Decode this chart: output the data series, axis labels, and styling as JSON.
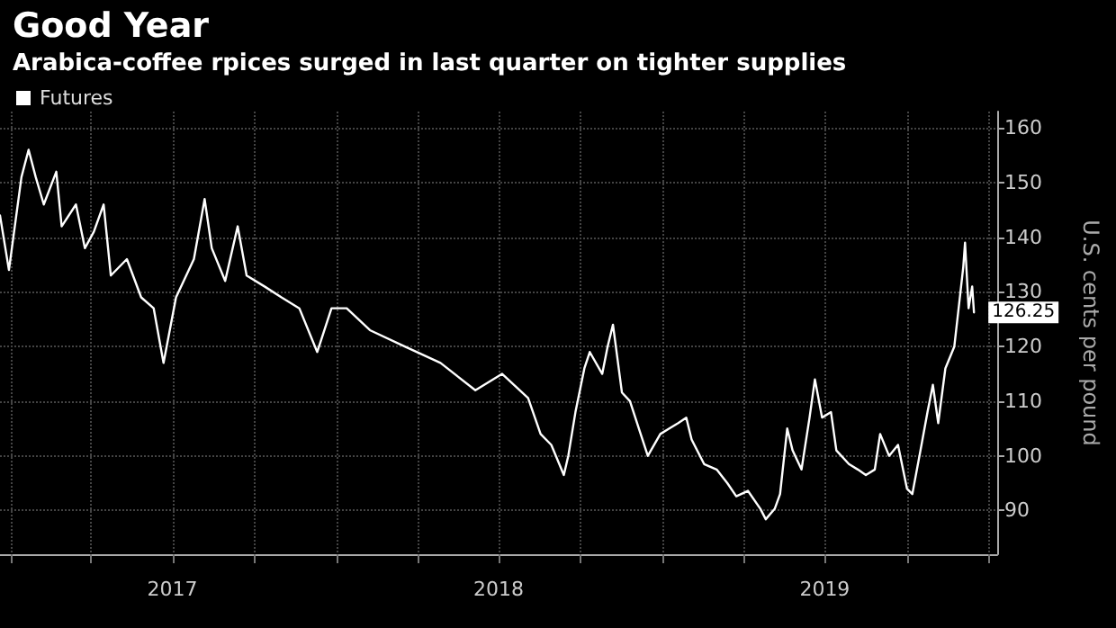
{
  "chart_data": {
    "type": "line",
    "title": "Good Year",
    "subtitle": "Arabica-coffee rpices surged in last quarter on tighter supplies",
    "ylabel": "U.S. cents per pound",
    "x": [
      "2016-12-20",
      "2016-12-30",
      "2017-01-13",
      "2017-01-21",
      "2017-01-29",
      "2017-02-07",
      "2017-02-21",
      "2017-02-27",
      "2017-03-15",
      "2017-03-25",
      "2017-04-04",
      "2017-04-15",
      "2017-04-23",
      "2017-05-11",
      "2017-05-27",
      "2017-06-10",
      "2017-06-21",
      "2017-07-05",
      "2017-07-25",
      "2017-08-06",
      "2017-08-14",
      "2017-08-29",
      "2017-09-12",
      "2017-09-22",
      "2017-10-12",
      "2017-10-31",
      "2017-11-20",
      "2017-12-10",
      "2017-12-26",
      "2018-01-12",
      "2018-02-07",
      "2018-03-18",
      "2018-04-27",
      "2018-06-05",
      "2018-07-05",
      "2018-08-03",
      "2018-08-17",
      "2018-08-29",
      "2018-09-12",
      "2018-09-17",
      "2018-09-25",
      "2018-10-05",
      "2018-10-11",
      "2018-10-25",
      "2018-10-31",
      "2018-11-06",
      "2018-11-16",
      "2018-11-25",
      "2018-12-05",
      "2018-12-15",
      "2018-12-29",
      "2019-01-08",
      "2019-01-18",
      "2019-01-27",
      "2019-02-02",
      "2019-02-16",
      "2019-03-02",
      "2019-03-14",
      "2019-03-24",
      "2019-04-06",
      "2019-04-20",
      "2019-04-26",
      "2019-05-06",
      "2019-05-12",
      "2019-05-20",
      "2019-05-26",
      "2019-06-05",
      "2019-06-14",
      "2019-06-20",
      "2019-06-28",
      "2019-07-08",
      "2019-07-14",
      "2019-07-28",
      "2019-08-07",
      "2019-08-16",
      "2019-08-26",
      "2019-09-01",
      "2019-09-11",
      "2019-09-21",
      "2019-10-01",
      "2019-10-07",
      "2019-10-15",
      "2019-10-24",
      "2019-10-30",
      "2019-11-05",
      "2019-11-13",
      "2019-11-23",
      "2019-12-03",
      "2019-12-05",
      "2019-12-09",
      "2019-12-13",
      "2019-12-15"
    ],
    "series": [
      {
        "name": "Futures",
        "color": "#ffffff",
        "values": [
          144,
          134,
          151,
          156,
          151,
          146,
          152,
          142,
          146,
          138,
          141,
          146,
          133,
          136,
          129,
          127,
          117,
          129,
          136,
          147,
          138,
          132,
          142,
          133,
          131,
          129,
          127,
          119,
          127,
          127,
          123,
          120,
          117,
          112,
          115,
          110.6,
          104,
          102,
          96.5,
          100,
          108,
          116,
          119,
          115,
          120,
          124,
          111.6,
          110,
          105,
          100,
          104,
          105,
          106,
          107,
          103,
          98.5,
          97.5,
          95,
          92.6,
          93.6,
          90.3,
          88.4,
          90.3,
          93,
          105,
          101,
          97.5,
          107,
          114,
          107,
          108,
          101,
          98.5,
          97.5,
          96.5,
          97.5,
          104,
          100,
          102,
          94,
          93,
          100,
          108,
          113,
          106,
          116,
          120,
          134.5,
          139,
          127,
          131,
          126.25
        ],
        "value_labels": [
          null,
          null,
          null,
          null,
          null,
          null,
          null,
          null,
          null,
          null,
          null,
          null,
          null,
          null,
          null,
          null,
          null,
          null,
          null,
          null,
          null,
          null,
          null,
          null,
          null,
          null,
          null,
          null,
          null,
          null,
          null,
          null,
          null,
          null,
          null,
          null,
          null,
          null,
          null,
          null,
          null,
          null,
          null,
          null,
          null,
          null,
          null,
          null,
          null,
          null,
          null,
          null,
          null,
          null,
          null,
          null,
          null,
          null,
          null,
          null,
          null,
          null,
          null,
          null,
          null,
          null,
          null,
          null,
          null,
          null,
          null,
          null,
          null,
          null,
          null,
          null,
          null,
          null,
          null,
          null,
          null,
          null,
          null,
          null,
          null,
          null,
          null,
          null,
          null,
          null,
          null,
          "126.25"
        ]
      }
    ],
    "xlim": [
      "2016-12-20",
      "2020-01-10"
    ],
    "xticks": [
      {
        "value": "2017-01-01",
        "label": null
      },
      {
        "value": "2017-04-01",
        "label": null
      },
      {
        "value": "2017-07-01",
        "label": "2017"
      },
      {
        "value": "2017-10-01",
        "label": null
      },
      {
        "value": "2018-01-01",
        "label": null
      },
      {
        "value": "2018-04-01",
        "label": null
      },
      {
        "value": "2018-07-01",
        "label": "2018"
      },
      {
        "value": "2018-10-01",
        "label": null
      },
      {
        "value": "2019-01-01",
        "label": null
      },
      {
        "value": "2019-04-01",
        "label": null
      },
      {
        "value": "2019-07-01",
        "label": "2019"
      },
      {
        "value": "2019-10-01",
        "label": null
      },
      {
        "value": "2020-01-01",
        "label": null
      }
    ],
    "ylim": [
      82,
      163
    ],
    "yticks": [
      90,
      100,
      110,
      120,
      130,
      140,
      150,
      160
    ],
    "grid": true,
    "legend": "top left",
    "marker": "none",
    "line_style": "solid"
  }
}
